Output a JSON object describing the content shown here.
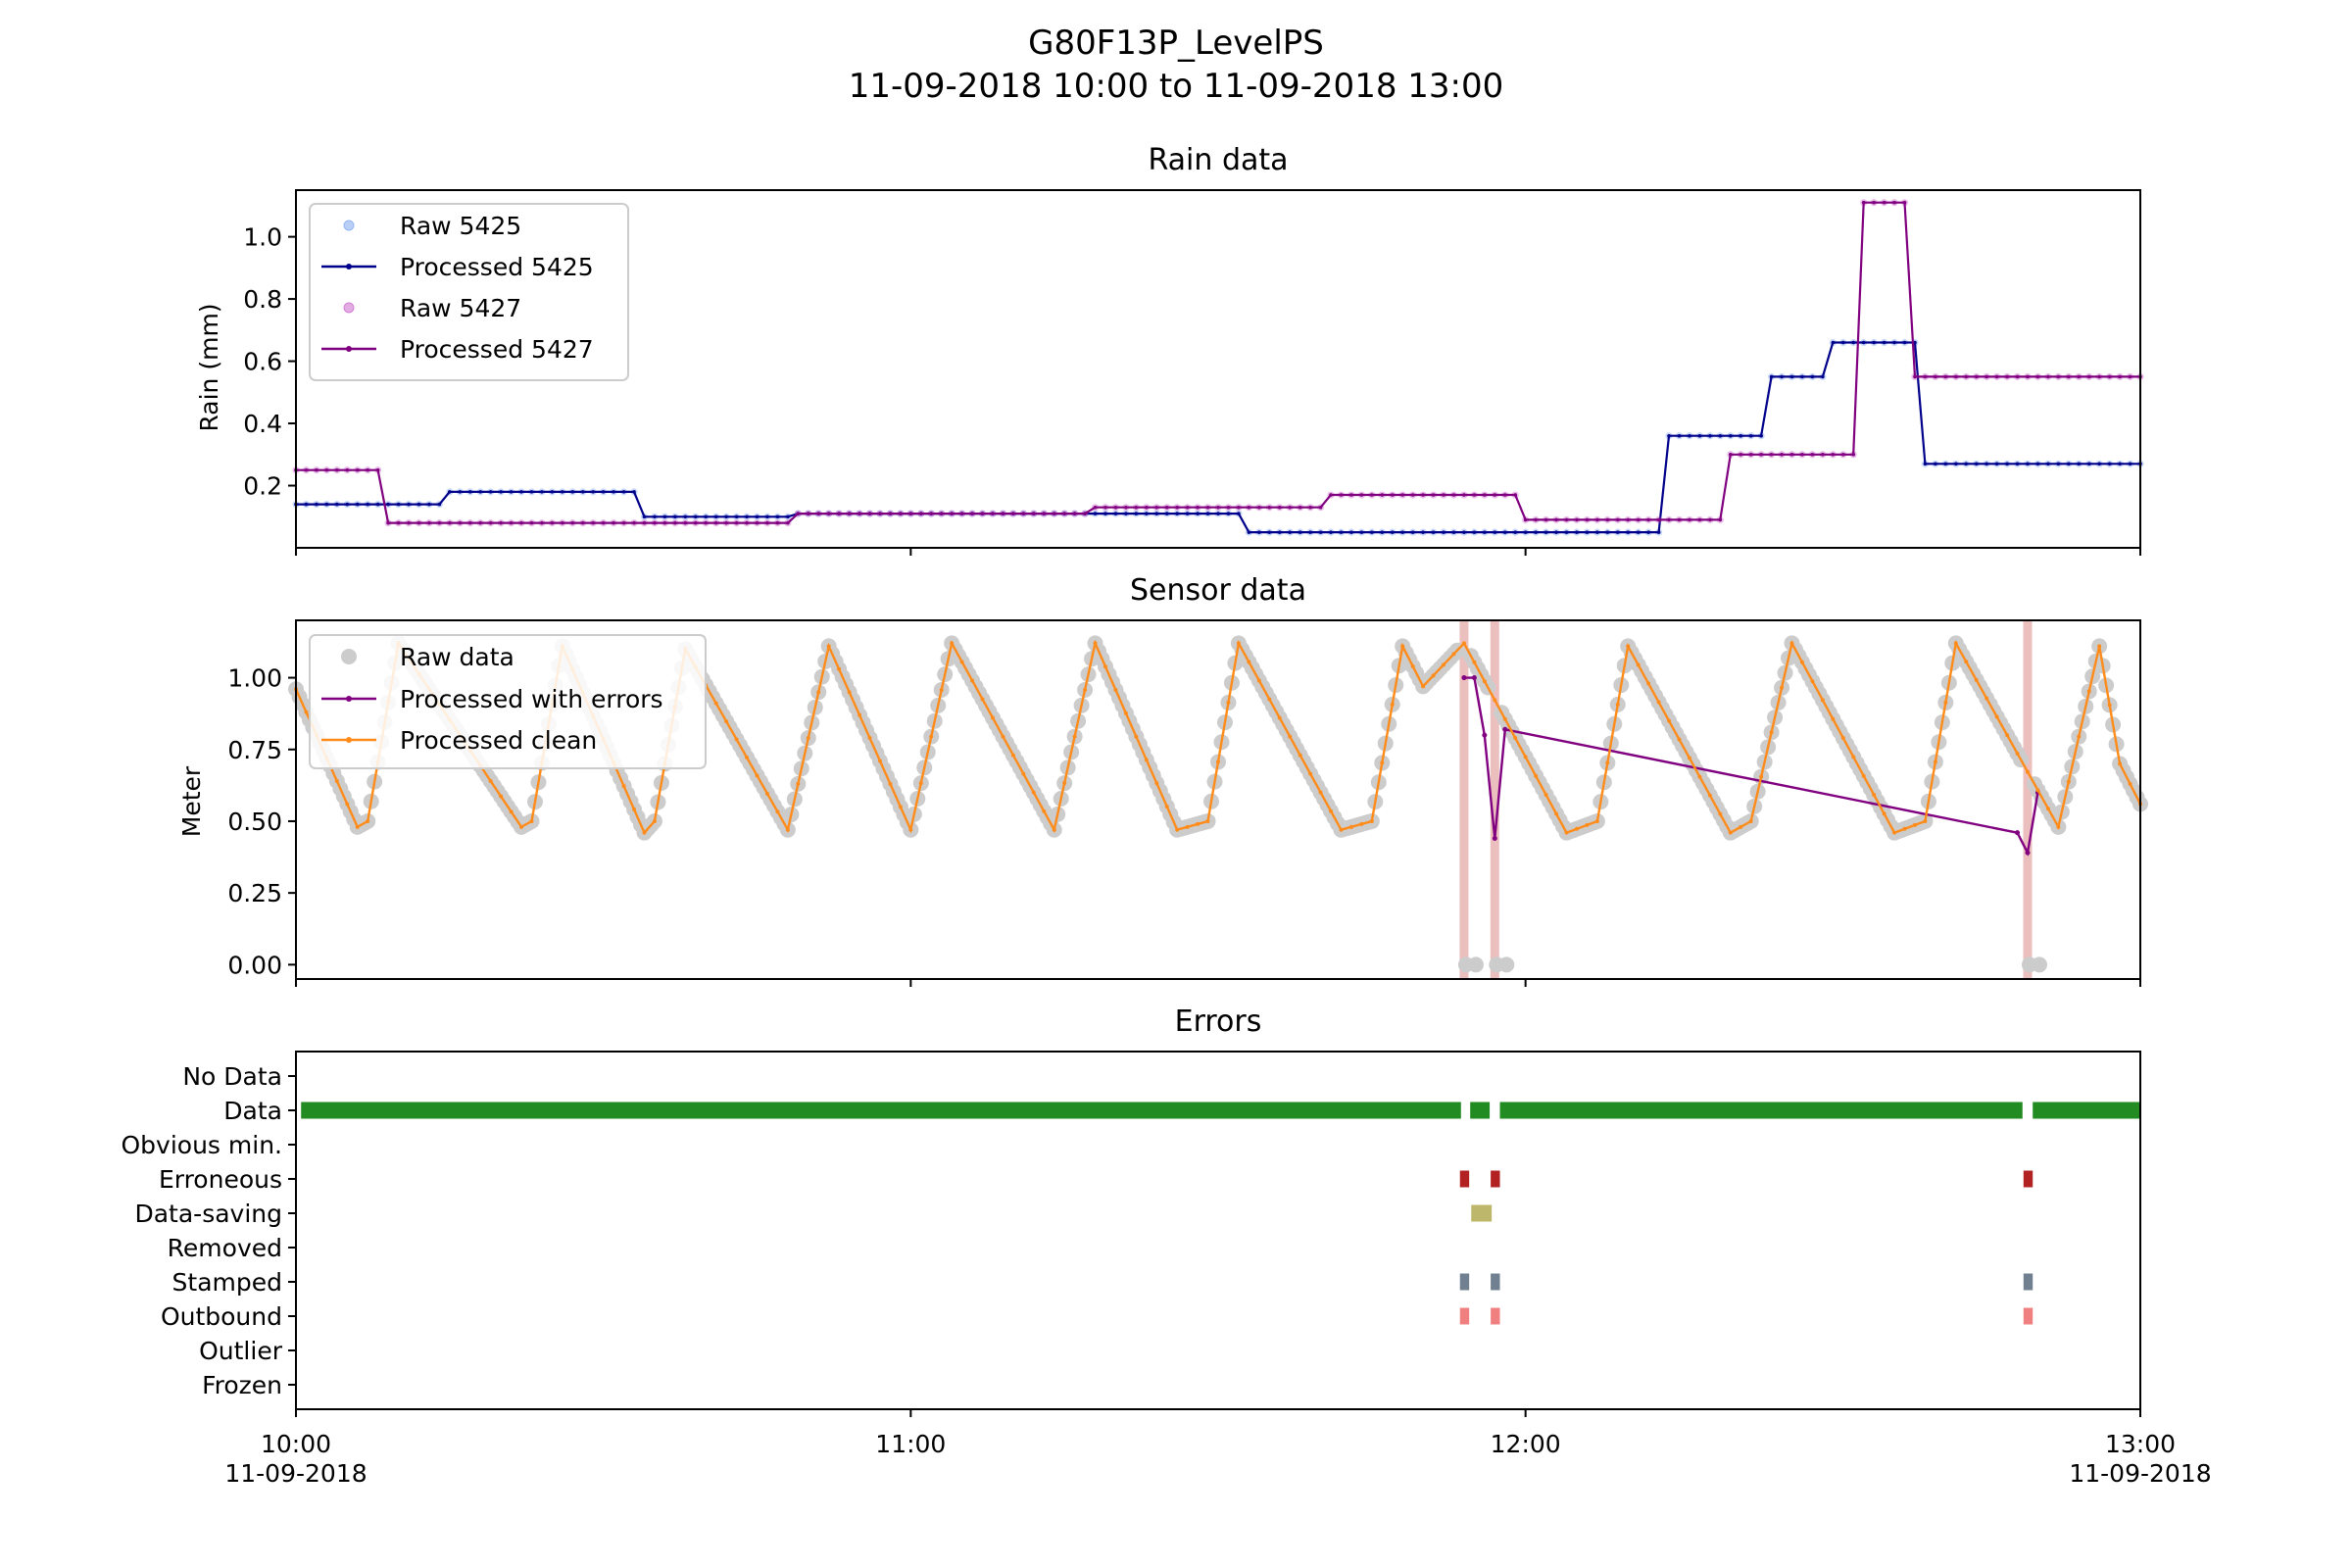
{
  "figure": {
    "title_line1": "G80F13P_LevelPS",
    "title_line2": "11-09-2018 10:00 to 11-09-2018 13:00"
  },
  "colors": {
    "raw5425": "#6495ed",
    "proc5425": "#00008b",
    "raw5427": "#c04ac0",
    "proc5427": "#800080",
    "raw_sensor": "#cccccc",
    "proc_errors": "#800080",
    "proc_clean": "#ff8c1a",
    "error_band": "#d98080",
    "data": "#228b22",
    "erroneous": "#b22222",
    "datasaving": "#bdb76b",
    "stamped": "#708090",
    "outbound": "#f08080"
  },
  "chart_data": [
    {
      "type": "line",
      "title": "Rain data",
      "ylabel": "Rain (mm)",
      "xlabel": "",
      "xlim": [
        0,
        180
      ],
      "ylim": [
        0,
        1.15
      ],
      "yticks": [
        "0.2",
        "0.4",
        "0.6",
        "0.8",
        "1.0"
      ],
      "legend_position": "upper-left",
      "legend": [
        "Raw 5425",
        "Processed 5425",
        "Raw 5427",
        "Processed 5427"
      ],
      "series": [
        {
          "name": "Processed 5425",
          "steps": [
            [
              0,
              0.14
            ],
            [
              8,
              0.14
            ],
            [
              15,
              0.18
            ],
            [
              34,
              0.1
            ],
            [
              49,
              0.11
            ],
            [
              60,
              0.11
            ],
            [
              80,
              0.11
            ],
            [
              93,
              0.05
            ],
            [
              107,
              0.05
            ],
            [
              116,
              0.05
            ],
            [
              134,
              0.36
            ],
            [
              142,
              0.36
            ],
            [
              144,
              0.55
            ],
            [
              148,
              0.55
            ],
            [
              150,
              0.66
            ],
            [
              154,
              0.66
            ],
            [
              159,
              0.27
            ],
            [
              180,
              0.27
            ]
          ]
        },
        {
          "name": "Processed 5427",
          "steps": [
            [
              0,
              0.25
            ],
            [
              9,
              0.08
            ],
            [
              49,
              0.11
            ],
            [
              61,
              0.11
            ],
            [
              78,
              0.13
            ],
            [
              96,
              0.13
            ],
            [
              101,
              0.17
            ],
            [
              120,
              0.09
            ],
            [
              138,
              0.09
            ],
            [
              140,
              0.3
            ],
            [
              149,
              0.3
            ],
            [
              153,
              1.11
            ],
            [
              158,
              0.55
            ],
            [
              180,
              0.55
            ]
          ]
        }
      ]
    },
    {
      "type": "line",
      "title": "Sensor data",
      "ylabel": "Meter",
      "xlabel": "",
      "xlim": [
        0,
        180
      ],
      "ylim": [
        -0.05,
        1.2
      ],
      "yticks": [
        "0.00",
        "0.25",
        "0.50",
        "0.75",
        "1.00"
      ],
      "legend_position": "upper-left",
      "legend": [
        "Raw data",
        "Processed with errors",
        "Processed clean"
      ],
      "error_minutes": [
        114,
        117,
        169
      ],
      "series": [
        {
          "name": "Processed clean",
          "points": [
            [
              0,
              0.96
            ],
            [
              6,
              0.48
            ],
            [
              7,
              0.5
            ],
            [
              10,
              1.12
            ],
            [
              22,
              0.48
            ],
            [
              23,
              0.5
            ],
            [
              26,
              1.11
            ],
            [
              34,
              0.46
            ],
            [
              35,
              0.5
            ],
            [
              38,
              1.1
            ],
            [
              48,
              0.47
            ],
            [
              52,
              1.11
            ],
            [
              60,
              0.47
            ],
            [
              64,
              1.12
            ],
            [
              74,
              0.47
            ],
            [
              78,
              1.12
            ],
            [
              86,
              0.47
            ],
            [
              89,
              0.5
            ],
            [
              92,
              1.12
            ],
            [
              102,
              0.47
            ],
            [
              105,
              0.5
            ],
            [
              108,
              1.11
            ],
            [
              110,
              0.97
            ],
            [
              114,
              1.12
            ],
            [
              124,
              0.46
            ],
            [
              127,
              0.5
            ],
            [
              130,
              1.11
            ],
            [
              140,
              0.46
            ],
            [
              142,
              0.5
            ],
            [
              146,
              1.12
            ],
            [
              156,
              0.46
            ],
            [
              159,
              0.5
            ],
            [
              162,
              1.12
            ],
            [
              172,
              0.48
            ],
            [
              176,
              1.11
            ],
            [
              178,
              0.7
            ],
            [
              180,
              0.56
            ]
          ]
        },
        {
          "name": "Processed with errors",
          "points": [
            [
              114,
              1.0
            ],
            [
              115,
              1.0
            ],
            [
              116,
              0.8
            ],
            [
              117,
              0.44
            ],
            [
              118,
              0.82
            ],
            [
              168,
              0.46
            ],
            [
              169,
              0.39
            ],
            [
              170,
              0.6
            ]
          ]
        }
      ]
    },
    {
      "type": "bar",
      "title": "Errors",
      "xlabel": "",
      "ylabel": "",
      "xlim": [
        0,
        180
      ],
      "categories": [
        "No Data",
        "Data",
        "Obvious min.",
        "Erroneous",
        "Data-saving",
        "Removed",
        "Stamped",
        "Outbound",
        "Outlier",
        "Frozen"
      ],
      "xticks": [
        {
          "minute": 0,
          "time": "10:00",
          "date": "11-09-2018"
        },
        {
          "minute": 60,
          "time": "11:00",
          "date": ""
        },
        {
          "minute": 120,
          "time": "12:00",
          "date": ""
        },
        {
          "minute": 180,
          "time": "13:00",
          "date": "11-09-2018"
        }
      ],
      "segments": [
        {
          "category": "Data",
          "start": 0.5,
          "end": 113.7
        },
        {
          "category": "Data",
          "start": 114.6,
          "end": 116.5
        },
        {
          "category": "Data",
          "start": 117.5,
          "end": 168.5
        },
        {
          "category": "Data",
          "start": 169.5,
          "end": 180
        },
        {
          "category": "Erroneous",
          "start": 113.6,
          "end": 114.5
        },
        {
          "category": "Erroneous",
          "start": 116.6,
          "end": 117.5
        },
        {
          "category": "Erroneous",
          "start": 168.6,
          "end": 169.5
        },
        {
          "category": "Data-saving",
          "start": 114.7,
          "end": 116.7
        },
        {
          "category": "Stamped",
          "start": 113.6,
          "end": 114.5
        },
        {
          "category": "Stamped",
          "start": 116.6,
          "end": 117.5
        },
        {
          "category": "Stamped",
          "start": 168.6,
          "end": 169.5
        },
        {
          "category": "Outbound",
          "start": 113.6,
          "end": 114.5
        },
        {
          "category": "Outbound",
          "start": 116.6,
          "end": 117.5
        },
        {
          "category": "Outbound",
          "start": 168.6,
          "end": 169.5
        }
      ]
    }
  ]
}
